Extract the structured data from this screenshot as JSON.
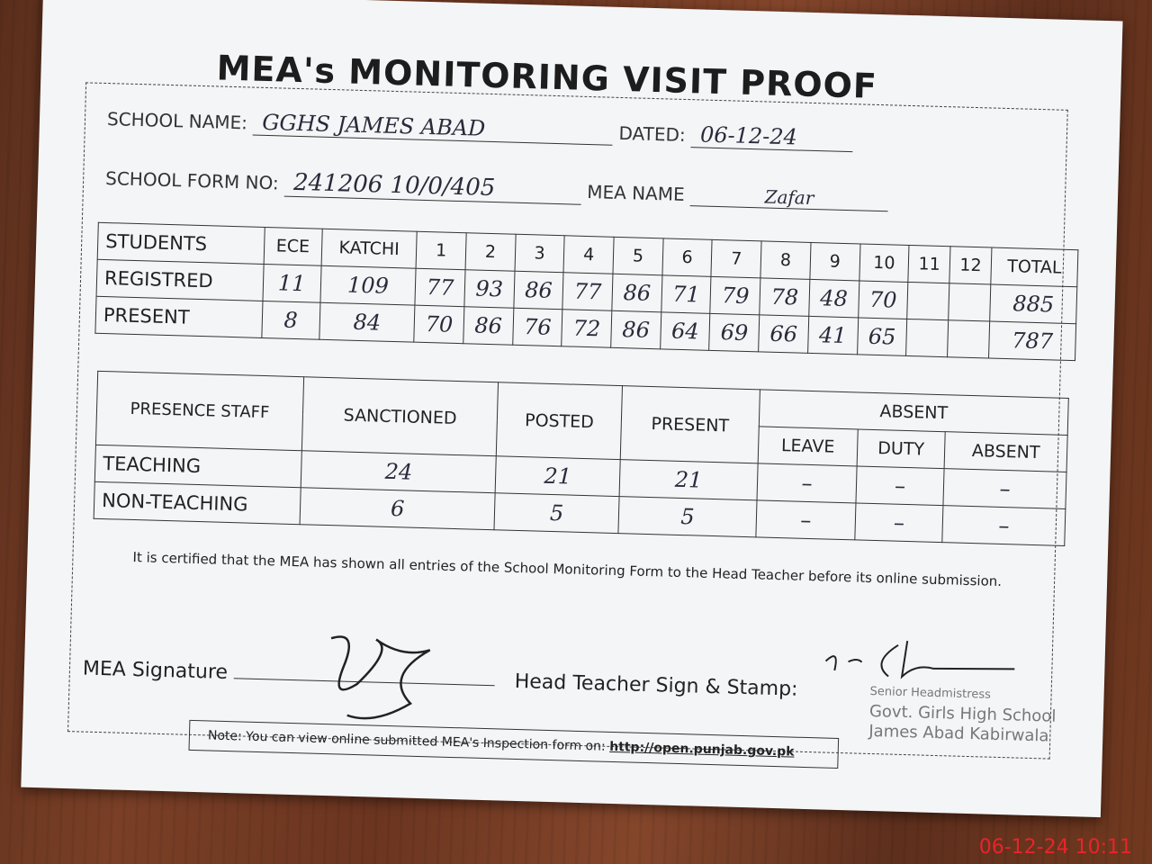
{
  "title": "MEA's MONITORING VISIT PROOF",
  "header": {
    "school_name_label": "SCHOOL NAME:",
    "school_name": "GGHS JAMES ABAD",
    "dated_label": "DATED:",
    "dated": "06-12-24",
    "form_no_label": "SCHOOL FORM NO:",
    "form_no": "241206 10/0/405",
    "mea_name_label": "MEA NAME",
    "mea_name": "Zafar"
  },
  "students": {
    "headers": [
      "STUDENTS",
      "ECE",
      "KATCHI",
      "1",
      "2",
      "3",
      "4",
      "5",
      "6",
      "7",
      "8",
      "9",
      "10",
      "11",
      "12",
      "TOTAL"
    ],
    "rows": [
      {
        "label": "REGISTRED",
        "values": [
          "11",
          "109",
          "77",
          "93",
          "86",
          "77",
          "86",
          "71",
          "79",
          "78",
          "48",
          "70",
          "",
          "",
          "885"
        ]
      },
      {
        "label": "PRESENT",
        "values": [
          "8",
          "84",
          "70",
          "86",
          "76",
          "72",
          "86",
          "64",
          "69",
          "66",
          "41",
          "65",
          "",
          "",
          "787"
        ]
      }
    ]
  },
  "staff": {
    "header_label": "PRESENCE STAFF",
    "columns": [
      "SANCTIONED",
      "POSTED",
      "PRESENT"
    ],
    "absent_label": "ABSENT",
    "absent_columns": [
      "LEAVE",
      "DUTY",
      "ABSENT"
    ],
    "rows": [
      {
        "label": "TEACHING",
        "values": [
          "24",
          "21",
          "21",
          "–",
          "–",
          "–"
        ]
      },
      {
        "label": "NON-TEACHING",
        "values": [
          "6",
          "5",
          "5",
          "–",
          "–",
          "–"
        ]
      }
    ]
  },
  "certification": "It is certified that the MEA has shown all entries of the School Monitoring Form to the Head Teacher before its online submission.",
  "signatures": {
    "mea_label": "MEA Signature",
    "head_label": "Head Teacher Sign & Stamp:"
  },
  "stamp": [
    "Senior Headmistress",
    "Govt. Girls High School",
    "James Abad Kabirwala"
  ],
  "note": {
    "text": "Note: You can view online submitted MEA's Inspection form on:",
    "link": "http://open.punjab.gov.pk"
  },
  "timestamp": "06-12-24  10:11"
}
